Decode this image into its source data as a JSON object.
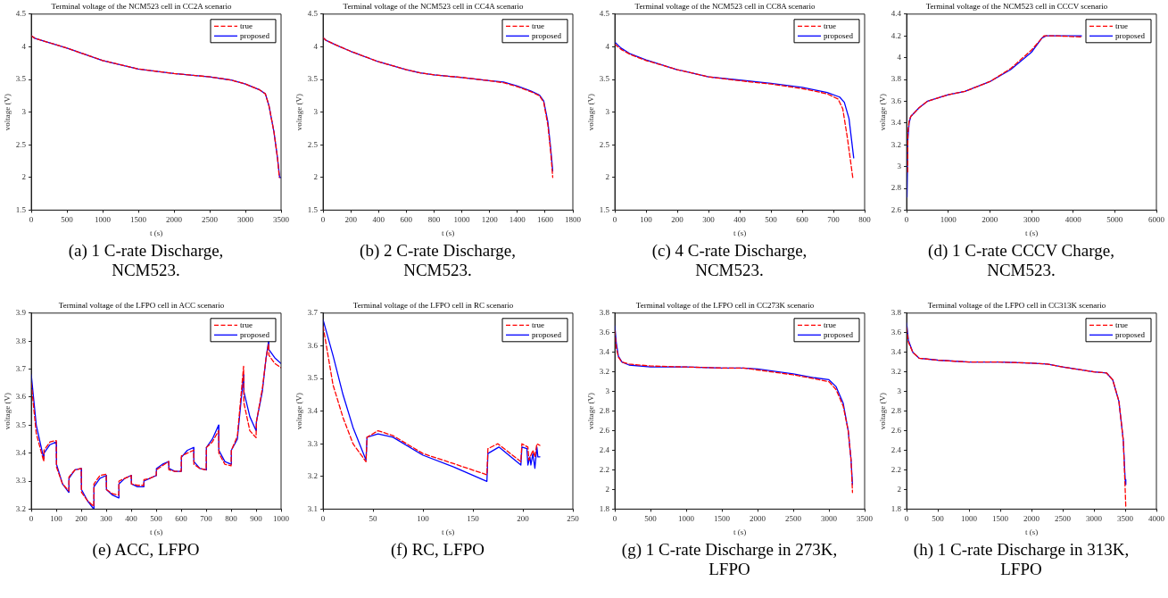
{
  "chart_data": [
    {
      "type": "line",
      "title": "Terminal voltage of the NCM523 cell in CC2A scenario",
      "xlabel": "t (s)",
      "ylabel": "voltage (V)",
      "annotations": [
        "(a) 1 C-rate Discharge, NCM523."
      ],
      "legend": "top right",
      "xlim": [
        0,
        3500
      ],
      "xticks": [
        0,
        500,
        1000,
        1500,
        2000,
        2500,
        3000,
        3500
      ],
      "ylim": [
        1.5,
        4.5
      ],
      "yticks": [
        1.5,
        2,
        2.5,
        3,
        3.5,
        4,
        4.5
      ],
      "series": [
        {
          "name": "true",
          "color": "#ff0000",
          "line_style": "dashed",
          "x": [
            0,
            50,
            200,
            500,
            1000,
            1500,
            2000,
            2500,
            2800,
            3000,
            3200,
            3280,
            3330,
            3400,
            3450,
            3475
          ],
          "values": [
            4.17,
            4.13,
            4.08,
            3.98,
            3.79,
            3.66,
            3.59,
            3.54,
            3.49,
            3.43,
            3.34,
            3.28,
            3.1,
            2.7,
            2.3,
            2.0
          ]
        },
        {
          "name": "proposed",
          "color": "#0000ff",
          "line_style": "solid",
          "x": [
            0,
            50,
            200,
            500,
            1000,
            1500,
            2000,
            2500,
            2800,
            3000,
            3200,
            3280,
            3330,
            3400,
            3450,
            3480,
            3500
          ],
          "values": [
            4.17,
            4.13,
            4.08,
            3.98,
            3.79,
            3.66,
            3.59,
            3.54,
            3.49,
            3.43,
            3.34,
            3.28,
            3.1,
            2.7,
            2.3,
            2.0,
            2.0
          ]
        }
      ]
    },
    {
      "type": "line",
      "title": "Terminal voltage of the NCM523 cell in CC4A scenario",
      "xlabel": "t (s)",
      "ylabel": "voltage (V)",
      "annotations": [
        "(b) 2 C-rate Discharge, NCM523."
      ],
      "legend": "top right",
      "xlim": [
        0,
        1800
      ],
      "xticks": [
        0,
        200,
        400,
        600,
        800,
        1000,
        1200,
        1400,
        1600,
        1800
      ],
      "ylim": [
        1.5,
        4.5
      ],
      "yticks": [
        1.5,
        2,
        2.5,
        3,
        3.5,
        4,
        4.5
      ],
      "series": [
        {
          "name": "true",
          "color": "#ff0000",
          "line_style": "dashed",
          "x": [
            0,
            20,
            100,
            200,
            400,
            600,
            700,
            800,
            1000,
            1200,
            1300,
            1400,
            1500,
            1560,
            1590,
            1620,
            1640,
            1655
          ],
          "values": [
            4.14,
            4.1,
            4.02,
            3.93,
            3.77,
            3.65,
            3.6,
            3.57,
            3.53,
            3.48,
            3.45,
            3.39,
            3.31,
            3.25,
            3.15,
            2.8,
            2.4,
            2.0
          ]
        },
        {
          "name": "proposed",
          "color": "#0000ff",
          "line_style": "solid",
          "x": [
            0,
            20,
            100,
            200,
            400,
            600,
            700,
            800,
            1000,
            1200,
            1300,
            1400,
            1500,
            1560,
            1590,
            1620,
            1640,
            1655
          ],
          "values": [
            4.14,
            4.1,
            4.02,
            3.93,
            3.77,
            3.65,
            3.6,
            3.57,
            3.53,
            3.48,
            3.46,
            3.4,
            3.32,
            3.26,
            3.17,
            2.85,
            2.45,
            2.1
          ]
        }
      ]
    },
    {
      "type": "line",
      "title": "Terminal voltage of the NCM523 cell in CC8A scenario",
      "xlabel": "t (s)",
      "ylabel": "voltage (V)",
      "annotations": [
        "(c) 4 C-rate Discharge, NCM523."
      ],
      "legend": "top right",
      "xlim": [
        0,
        800
      ],
      "xticks": [
        0,
        100,
        200,
        300,
        400,
        500,
        600,
        700,
        800
      ],
      "ylim": [
        1.5,
        4.5
      ],
      "yticks": [
        1.5,
        2,
        2.5,
        3,
        3.5,
        4,
        4.5
      ],
      "series": [
        {
          "name": "true",
          "color": "#ff0000",
          "line_style": "dashed",
          "x": [
            0,
            20,
            50,
            100,
            200,
            300,
            400,
            500,
            600,
            680,
            715,
            730,
            745,
            762
          ],
          "values": [
            4.04,
            3.96,
            3.88,
            3.79,
            3.65,
            3.54,
            3.48,
            3.43,
            3.36,
            3.28,
            3.2,
            3.05,
            2.6,
            2.0
          ]
        },
        {
          "name": "proposed",
          "color": "#0000ff",
          "line_style": "solid",
          "x": [
            0,
            20,
            50,
            100,
            200,
            300,
            400,
            500,
            600,
            680,
            720,
            735,
            750,
            765
          ],
          "values": [
            4.07,
            3.98,
            3.89,
            3.8,
            3.65,
            3.54,
            3.49,
            3.44,
            3.38,
            3.3,
            3.23,
            3.15,
            2.9,
            2.3
          ]
        }
      ]
    },
    {
      "type": "line",
      "title": "Terminal voltage of the NCM523 cell in CCCV scenario",
      "xlabel": "t (s)",
      "ylabel": "voltage (V)",
      "annotations": [
        "(d) 1 C-rate CCCV Charge, NCM523."
      ],
      "legend": "top right",
      "xlim": [
        0,
        6000
      ],
      "xticks": [
        0,
        1000,
        2000,
        3000,
        4000,
        5000,
        6000
      ],
      "ylim": [
        2.6,
        4.4
      ],
      "yticks": [
        2.6,
        2.8,
        3,
        3.2,
        3.4,
        3.6,
        3.8,
        4,
        4.2,
        4.4
      ],
      "series": [
        {
          "name": "true",
          "color": "#ff0000",
          "line_style": "dashed",
          "x": [
            25,
            30,
            60,
            100,
            300,
            500,
            1000,
            1400,
            2000,
            2500,
            3000,
            3300,
            3600,
            4200
          ],
          "values": [
            2.95,
            3.3,
            3.42,
            3.46,
            3.54,
            3.6,
            3.66,
            3.69,
            3.78,
            3.9,
            4.07,
            4.2,
            4.2,
            4.19
          ]
        },
        {
          "name": "proposed",
          "color": "#0000ff",
          "line_style": "solid",
          "x": [
            10,
            30,
            60,
            100,
            300,
            500,
            1000,
            1400,
            2000,
            2500,
            3000,
            3250,
            3350,
            3600,
            4200
          ],
          "values": [
            2.72,
            3.25,
            3.4,
            3.46,
            3.54,
            3.6,
            3.66,
            3.69,
            3.78,
            3.89,
            4.05,
            4.18,
            4.2,
            4.2,
            4.2
          ]
        }
      ]
    },
    {
      "type": "line",
      "title": "Terminal voltage of the LFPO cell in ACC scenario",
      "xlabel": "t (s)",
      "ylabel": "voltage (V)",
      "annotations": [
        "(e) ACC, LFPO"
      ],
      "legend": "top right",
      "xlim": [
        0,
        1000
      ],
      "xticks": [
        0,
        100,
        200,
        300,
        400,
        500,
        600,
        700,
        800,
        900,
        1000
      ],
      "ylim": [
        3.2,
        3.9
      ],
      "yticks": [
        3.2,
        3.3,
        3.4,
        3.5,
        3.6,
        3.7,
        3.8,
        3.9
      ],
      "series": [
        {
          "name": "true",
          "color": "#ff0000",
          "line_style": "dashed",
          "x": [
            0,
            20,
            50,
            51,
            75,
            100,
            101,
            125,
            150,
            151,
            175,
            200,
            201,
            225,
            250,
            251,
            275,
            300,
            301,
            325,
            350,
            351,
            375,
            400,
            401,
            425,
            450,
            451,
            475,
            500,
            501,
            525,
            550,
            551,
            575,
            600,
            601,
            625,
            650,
            651,
            675,
            700,
            701,
            725,
            750,
            751,
            775,
            800,
            801,
            825,
            850,
            851,
            875,
            900,
            901,
            925,
            940,
            950,
            951,
            975,
            1000
          ],
          "values": [
            3.65,
            3.47,
            3.37,
            3.41,
            3.44,
            3.445,
            3.35,
            3.29,
            3.265,
            3.315,
            3.34,
            3.345,
            3.26,
            3.23,
            3.21,
            3.29,
            3.32,
            3.325,
            3.27,
            3.255,
            3.25,
            3.3,
            3.31,
            3.32,
            3.29,
            3.285,
            3.285,
            3.305,
            3.31,
            3.32,
            3.34,
            3.355,
            3.37,
            3.34,
            3.335,
            3.335,
            3.39,
            3.4,
            3.41,
            3.36,
            3.345,
            3.34,
            3.42,
            3.44,
            3.48,
            3.4,
            3.36,
            3.355,
            3.41,
            3.46,
            3.71,
            3.58,
            3.48,
            3.455,
            3.51,
            3.63,
            3.74,
            3.79,
            3.75,
            3.72,
            3.705
          ]
        },
        {
          "name": "proposed",
          "color": "#0000ff",
          "line_style": "solid",
          "x": [
            0,
            20,
            50,
            51,
            75,
            100,
            101,
            125,
            150,
            151,
            175,
            200,
            201,
            225,
            250,
            251,
            275,
            300,
            301,
            325,
            350,
            351,
            375,
            400,
            401,
            425,
            450,
            451,
            475,
            500,
            501,
            525,
            550,
            551,
            575,
            600,
            601,
            625,
            650,
            651,
            675,
            700,
            701,
            725,
            750,
            751,
            775,
            800,
            801,
            825,
            850,
            851,
            875,
            900,
            901,
            925,
            940,
            950,
            951,
            975,
            1000
          ],
          "values": [
            3.68,
            3.5,
            3.38,
            3.4,
            3.43,
            3.44,
            3.36,
            3.29,
            3.26,
            3.31,
            3.34,
            3.345,
            3.27,
            3.23,
            3.2,
            3.28,
            3.31,
            3.32,
            3.27,
            3.25,
            3.24,
            3.29,
            3.31,
            3.32,
            3.29,
            3.28,
            3.28,
            3.3,
            3.31,
            3.32,
            3.345,
            3.36,
            3.37,
            3.345,
            3.335,
            3.335,
            3.385,
            3.41,
            3.42,
            3.37,
            3.345,
            3.34,
            3.42,
            3.45,
            3.5,
            3.41,
            3.37,
            3.36,
            3.41,
            3.45,
            3.68,
            3.62,
            3.53,
            3.48,
            3.51,
            3.62,
            3.74,
            3.8,
            3.77,
            3.74,
            3.72
          ]
        }
      ]
    },
    {
      "type": "line",
      "title": "Terminal voltage of the LFPO cell in RC scenario",
      "xlabel": "t (s)",
      "ylabel": "voltage (V)",
      "annotations": [
        "(f) RC, LFPO"
      ],
      "legend": "top right",
      "xlim": [
        0,
        250
      ],
      "xticks": [
        0,
        50,
        100,
        150,
        200,
        250
      ],
      "ylim": [
        3.1,
        3.7
      ],
      "yticks": [
        3.1,
        3.2,
        3.3,
        3.4,
        3.5,
        3.6,
        3.7
      ],
      "series": [
        {
          "name": "true",
          "color": "#ff0000",
          "line_style": "dashed",
          "x": [
            0,
            10,
            20,
            30,
            43,
            44,
            55,
            70,
            100,
            130,
            164,
            165,
            175,
            198,
            199,
            205,
            206,
            208,
            210,
            212,
            214,
            217
          ],
          "values": [
            3.66,
            3.48,
            3.38,
            3.3,
            3.245,
            3.32,
            3.34,
            3.325,
            3.27,
            3.24,
            3.205,
            3.285,
            3.3,
            3.245,
            3.3,
            3.29,
            3.25,
            3.265,
            3.28,
            3.26,
            3.3,
            3.295
          ]
        },
        {
          "name": "proposed",
          "color": "#0000ff",
          "line_style": "solid",
          "x": [
            0,
            10,
            20,
            30,
            43,
            44,
            55,
            70,
            100,
            130,
            164,
            165,
            176,
            198,
            199,
            204,
            205,
            207,
            208,
            210,
            212,
            214,
            215,
            217
          ],
          "values": [
            3.68,
            3.57,
            3.45,
            3.35,
            3.25,
            3.32,
            3.33,
            3.32,
            3.265,
            3.23,
            3.185,
            3.27,
            3.29,
            3.235,
            3.29,
            3.285,
            3.235,
            3.26,
            3.235,
            3.27,
            3.225,
            3.29,
            3.26,
            3.26
          ]
        }
      ]
    },
    {
      "type": "line",
      "title": "Terminal voltage of the LFPO cell in CC273K scenario",
      "xlabel": "t (s)",
      "ylabel": "voltage (V)",
      "annotations": [
        "(g) 1 C-rate Discharge in 273K, LFPO"
      ],
      "legend": "top right",
      "xlim": [
        0,
        3500
      ],
      "xticks": [
        0,
        500,
        1000,
        1500,
        2000,
        2500,
        3000,
        3500
      ],
      "ylim": [
        1.8,
        3.8
      ],
      "yticks": [
        1.8,
        2,
        2.2,
        2.4,
        2.6,
        2.8,
        3,
        3.2,
        3.4,
        3.6,
        3.8
      ],
      "series": [
        {
          "name": "true",
          "color": "#ff0000",
          "line_style": "dashed",
          "x": [
            0,
            20,
            50,
            100,
            200,
            500,
            1000,
            1500,
            1800,
            2000,
            2500,
            2800,
            3000,
            3100,
            3200,
            3270,
            3310,
            3330
          ],
          "values": [
            3.62,
            3.45,
            3.35,
            3.3,
            3.28,
            3.26,
            3.25,
            3.24,
            3.24,
            3.22,
            3.17,
            3.13,
            3.1,
            3.02,
            2.85,
            2.6,
            2.3,
            1.97
          ]
        },
        {
          "name": "proposed",
          "color": "#0000ff",
          "line_style": "solid",
          "x": [
            0,
            20,
            50,
            100,
            200,
            500,
            1000,
            1500,
            1800,
            2000,
            2500,
            2800,
            3000,
            3100,
            3200,
            3270,
            3310,
            3330
          ],
          "values": [
            3.67,
            3.5,
            3.36,
            3.3,
            3.27,
            3.25,
            3.25,
            3.24,
            3.24,
            3.23,
            3.18,
            3.14,
            3.12,
            3.05,
            2.88,
            2.6,
            2.3,
            2.05
          ]
        }
      ]
    },
    {
      "type": "line",
      "title": "Terminal voltage of the LFPO cell in CC313K scenario",
      "xlabel": "t (s)",
      "ylabel": "voltage (V)",
      "annotations": [
        "(h) 1 C-rate Discharge in 313K, LFPO"
      ],
      "legend": "top right",
      "xlim": [
        0,
        4000
      ],
      "xticks": [
        0,
        500,
        1000,
        1500,
        2000,
        2500,
        3000,
        3500,
        4000
      ],
      "ylim": [
        1.8,
        3.8
      ],
      "yticks": [
        1.8,
        2,
        2.2,
        2.4,
        2.6,
        2.8,
        3,
        3.2,
        3.4,
        3.6,
        3.8
      ],
      "series": [
        {
          "name": "true",
          "color": "#ff0000",
          "line_style": "dashed",
          "x": [
            0,
            30,
            100,
            200,
            500,
            1000,
            1500,
            2000,
            2250,
            2500,
            3000,
            3200,
            3300,
            3400,
            3470,
            3500,
            3510
          ],
          "values": [
            3.65,
            3.5,
            3.4,
            3.34,
            3.32,
            3.3,
            3.3,
            3.29,
            3.28,
            3.25,
            3.2,
            3.19,
            3.12,
            2.9,
            2.5,
            2.0,
            1.82
          ]
        },
        {
          "name": "proposed",
          "color": "#0000ff",
          "line_style": "solid",
          "x": [
            0,
            30,
            100,
            200,
            500,
            1000,
            1500,
            2000,
            2250,
            2500,
            3000,
            3200,
            3300,
            3400,
            3470,
            3500,
            3510
          ],
          "values": [
            3.7,
            3.52,
            3.4,
            3.34,
            3.32,
            3.3,
            3.3,
            3.29,
            3.28,
            3.25,
            3.2,
            3.19,
            3.12,
            2.9,
            2.5,
            2.1,
            2.05
          ]
        }
      ]
    }
  ]
}
